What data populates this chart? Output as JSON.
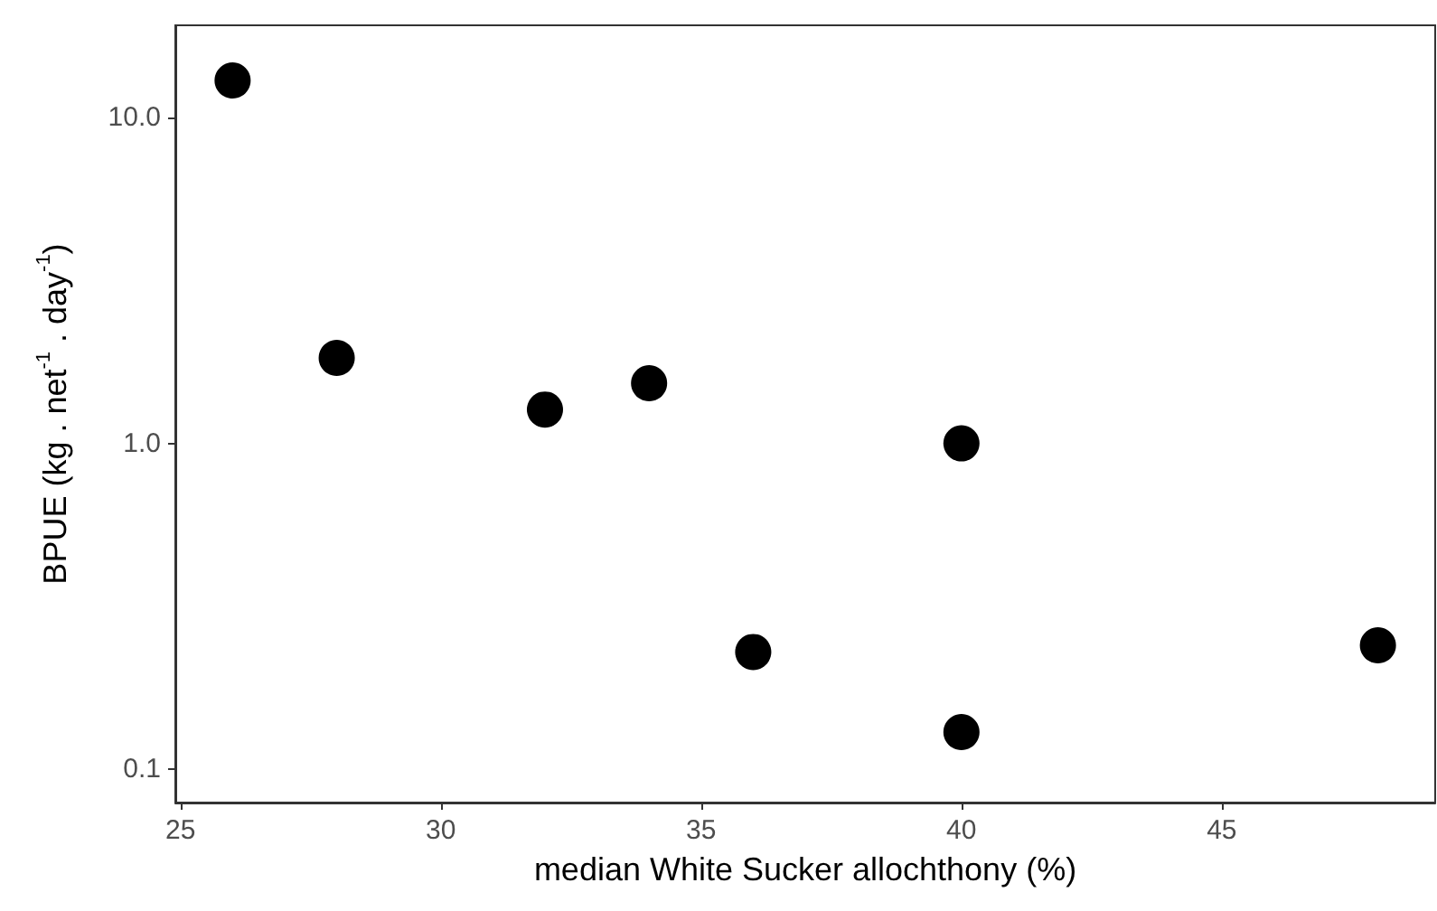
{
  "chart_data": {
    "type": "scatter",
    "xlabel": "median White Sucker allochthony (%)",
    "ylabel": "BPUE (kg . net$^{-1}$ . day$^{-1}$)",
    "series": [
      {
        "color": "#000000",
        "x": [
          26,
          28,
          32,
          34,
          36,
          40,
          40,
          48
        ],
        "values": [
          13.0,
          1.83,
          1.27,
          1.53,
          0.229,
          1.0,
          0.13,
          0.24
        ]
      }
    ],
    "log": "y",
    "xlim": [
      24.9,
      49.1
    ],
    "xticks": [
      25,
      30,
      35,
      40,
      45
    ],
    "ylim": [
      0.079,
      19.2
    ],
    "yticks": [
      {
        "value": 0.1,
        "label": "0.1"
      },
      {
        "value": 1,
        "label": "1.0"
      },
      {
        "value": 10,
        "label": "10.0"
      }
    ],
    "grid": false,
    "marker": "circle"
  }
}
